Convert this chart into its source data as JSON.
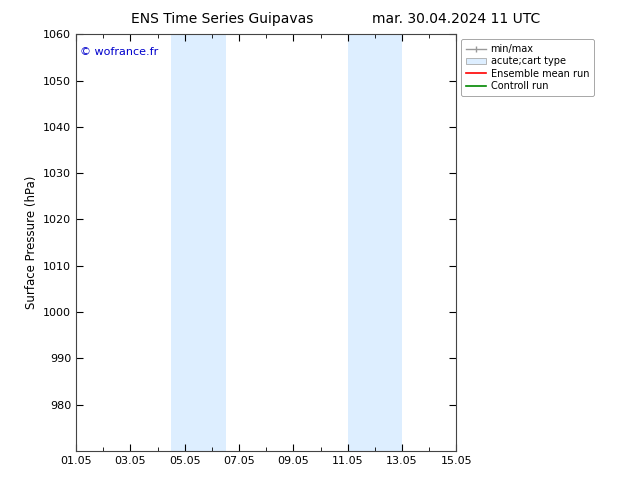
{
  "title_left": "ENS Time Series Guipavas",
  "title_right": "mar. 30.04.2024 11 UTC",
  "ylabel": "Surface Pressure (hPa)",
  "ylim": [
    970,
    1060
  ],
  "yticks": [
    980,
    990,
    1000,
    1010,
    1020,
    1030,
    1040,
    1050,
    1060
  ],
  "xlim_days": [
    0,
    14
  ],
  "xtick_labels": [
    "01.05",
    "03.05",
    "05.05",
    "07.05",
    "09.05",
    "11.05",
    "13.05",
    "15.05"
  ],
  "xtick_positions": [
    0,
    2,
    4,
    6,
    8,
    10,
    12,
    14
  ],
  "shaded_bands": [
    {
      "xmin": 3.5,
      "xmax": 4.5
    },
    {
      "xmin": 4.5,
      "xmax": 5.5
    },
    {
      "xmin": 10.0,
      "xmax": 11.0
    },
    {
      "xmin": 11.0,
      "xmax": 12.0
    }
  ],
  "band_color": "#ddeeff",
  "band_color2": "#e8f4ff",
  "copyright_text": "© wofrance.fr",
  "copyright_color": "#0000cc",
  "legend_entries": [
    "min/max",
    "acute;cart type",
    "Ensemble mean run",
    "Controll run"
  ],
  "legend_line_colors": [
    "#999999",
    "#cccccc",
    "#ff0000",
    "#008800"
  ],
  "background_color": "#ffffff",
  "axes_facecolor": "#ffffff",
  "title_fontsize": 10,
  "tick_fontsize": 8,
  "ylabel_fontsize": 8.5
}
